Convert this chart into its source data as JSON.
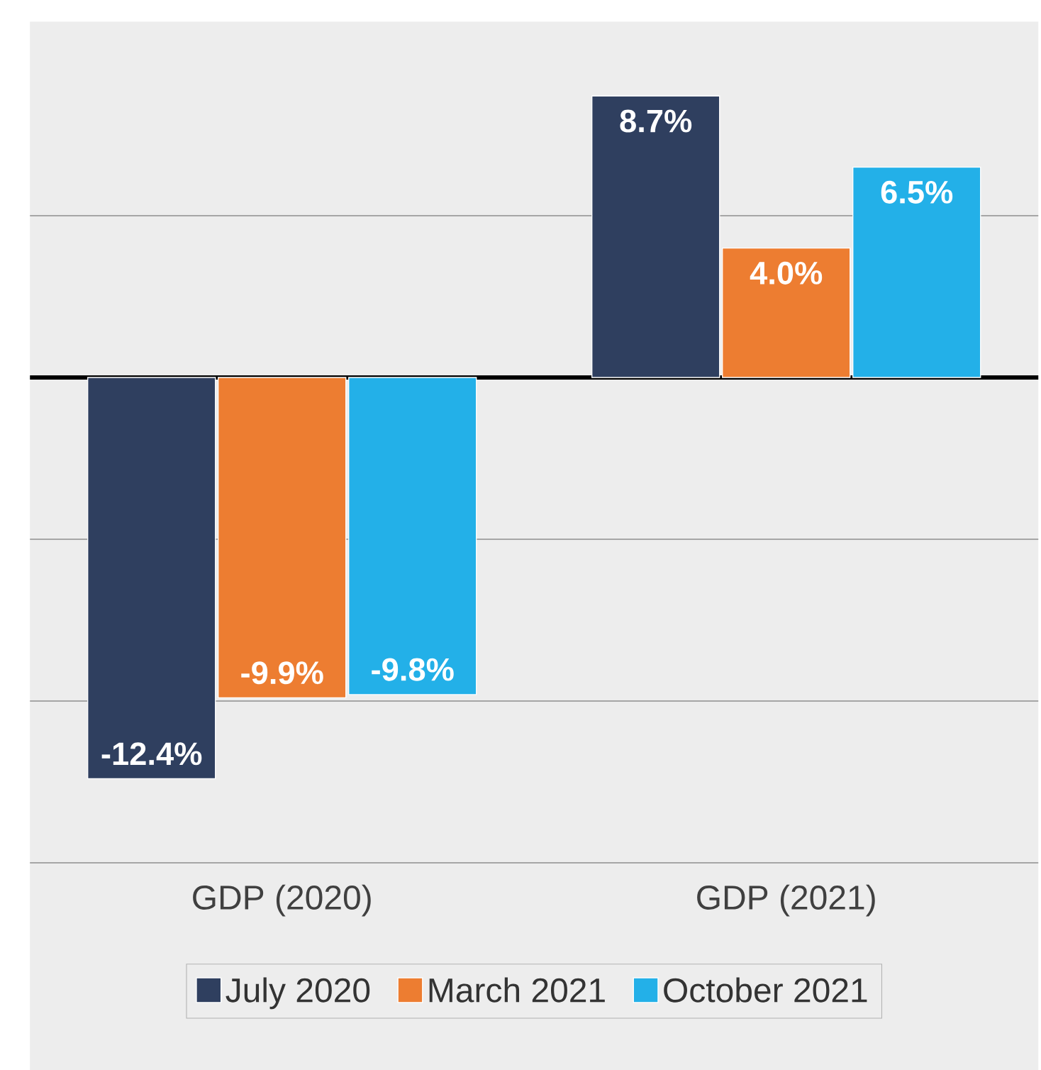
{
  "chart_data": {
    "type": "bar",
    "categories": [
      "GDP (2020)",
      "GDP (2021)"
    ],
    "series": [
      {
        "name": "July 2020",
        "color": "#2f3f5f",
        "values": [
          -12.4,
          8.7
        ],
        "value_labels": [
          "-12.4%",
          "8.7%"
        ]
      },
      {
        "name": "March 2021",
        "color": "#ed7d31",
        "values": [
          -9.9,
          4.0
        ],
        "value_labels": [
          "-9.9%",
          "4.0%"
        ]
      },
      {
        "name": "October 2021",
        "color": "#23b0e8",
        "values": [
          -9.8,
          6.5
        ],
        "value_labels": [
          "-9.8%",
          "6.5%"
        ]
      }
    ],
    "ylim": [
      -15,
      11
    ],
    "yticks": [
      {
        "value": -15,
        "label": null
      },
      {
        "value": -10,
        "label": null
      },
      {
        "value": -5,
        "label": null
      },
      {
        "value": 5,
        "label": null
      }
    ],
    "grid": "y",
    "tick_labels": "x",
    "legend": "bottom"
  }
}
